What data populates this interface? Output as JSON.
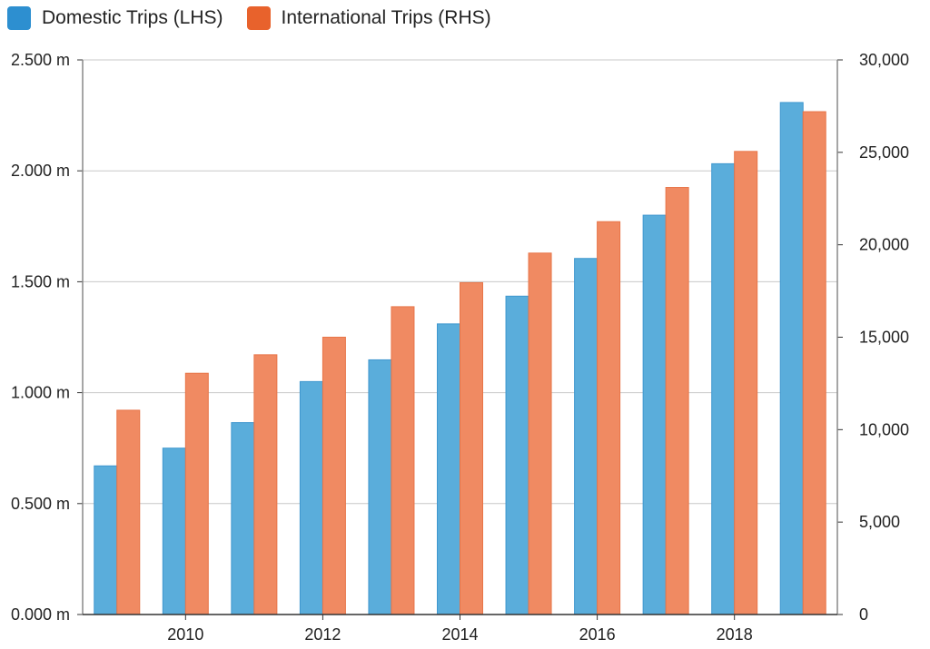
{
  "chart_data": {
    "type": "bar",
    "title": "",
    "legend_position": "top-left",
    "grid": true,
    "categories": [
      "2009",
      "2010",
      "2011",
      "2012",
      "2013",
      "2014",
      "2015",
      "2016",
      "2017",
      "2018",
      "2019"
    ],
    "x_tick_labels": [
      "2010",
      "2012",
      "2014",
      "2016",
      "2018"
    ],
    "series": [
      {
        "name": "Domestic Trips (LHS)",
        "axis": "left",
        "color": "#5aaddb",
        "values": [
          0.67,
          0.75,
          0.865,
          1.05,
          1.148,
          1.31,
          1.435,
          1.605,
          1.8,
          2.032,
          2.308
        ]
      },
      {
        "name": "International Trips (RHS)",
        "axis": "right",
        "color": "#f08a62",
        "values": [
          11050,
          13050,
          14050,
          15000,
          16650,
          17950,
          19550,
          21250,
          23100,
          25050,
          27200
        ]
      }
    ],
    "y_left": {
      "ylim": [
        0,
        2.5
      ],
      "ticks": [
        "0.000 m",
        "0.500 m",
        "1.000 m",
        "1.500 m",
        "2.000 m",
        "2.500 m"
      ]
    },
    "y_right": {
      "ylim": [
        0,
        30000
      ],
      "ticks": [
        "0",
        "5,000",
        "10,000",
        "15,000",
        "20,000",
        "25,000",
        "30,000"
      ]
    }
  }
}
